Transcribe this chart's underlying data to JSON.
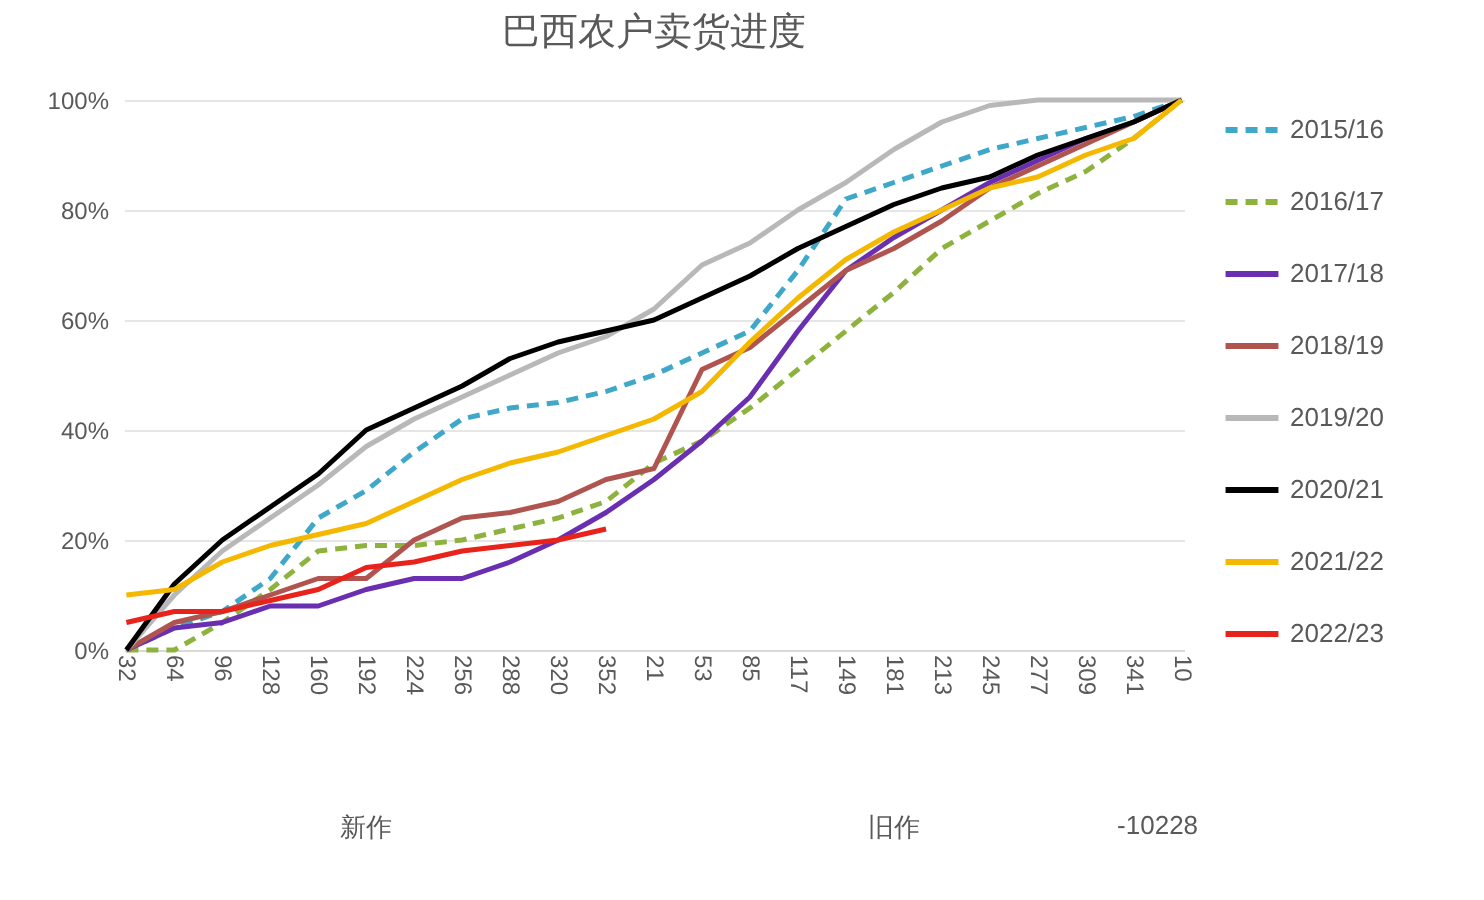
{
  "chart_data": {
    "type": "line",
    "title": "巴西农户卖货进度",
    "categories": [
      "32",
      "64",
      "96",
      "128",
      "160",
      "192",
      "224",
      "256",
      "288",
      "320",
      "352",
      "21",
      "53",
      "85",
      "117",
      "149",
      "181",
      "213",
      "245",
      "277",
      "309",
      "341",
      "10"
    ],
    "annotations": [
      "新作",
      "旧作",
      "-10228"
    ],
    "ylim": [
      0,
      100
    ],
    "yticks": [
      {
        "value": 0,
        "label": "0%"
      },
      {
        "value": 20,
        "label": "20%"
      },
      {
        "value": 40,
        "label": "40%"
      },
      {
        "value": 60,
        "label": "60%"
      },
      {
        "value": 80,
        "label": "80%"
      },
      {
        "value": 100,
        "label": "100%"
      }
    ],
    "grid": "y",
    "legend": "right",
    "series": [
      {
        "name": "2015/16",
        "color": "#3fa8c8",
        "line_style": "dashed",
        "values": [
          0,
          4,
          7,
          13,
          24,
          29,
          36,
          42,
          44,
          45,
          47,
          50,
          54,
          58,
          69,
          82,
          85,
          88,
          91,
          93,
          95,
          97,
          100
        ]
      },
      {
        "name": "2016/17",
        "color": "#8db33e",
        "line_style": "dashed",
        "values": [
          0,
          0,
          5,
          11,
          18,
          19,
          19,
          20,
          22,
          24,
          27,
          34,
          38,
          44,
          51,
          58,
          65,
          73,
          78,
          83,
          87,
          93,
          100
        ]
      },
      {
        "name": "2017/18",
        "color": "#6a2fb0",
        "line_style": "solid",
        "values": [
          0,
          4,
          5,
          8,
          8,
          11,
          13,
          13,
          16,
          20,
          25,
          31,
          38,
          46,
          58,
          69,
          75,
          80,
          85,
          89,
          93,
          96,
          100
        ]
      },
      {
        "name": "2018/19",
        "color": "#b0544f",
        "line_style": "solid",
        "values": [
          0,
          5,
          7,
          10,
          13,
          13,
          20,
          24,
          25,
          27,
          31,
          33,
          51,
          55,
          62,
          69,
          73,
          78,
          84,
          88,
          92,
          96,
          100
        ]
      },
      {
        "name": "2019/20",
        "color": "#b8b8b8",
        "line_style": "solid",
        "values": [
          0,
          10,
          18,
          24,
          30,
          37,
          42,
          46,
          50,
          54,
          57,
          62,
          70,
          74,
          80,
          85,
          91,
          96,
          99,
          100,
          100,
          100,
          100
        ]
      },
      {
        "name": "2020/21",
        "color": "#000000",
        "line_style": "solid",
        "values": [
          0,
          12,
          20,
          26,
          32,
          40,
          44,
          48,
          53,
          56,
          58,
          60,
          64,
          68,
          73,
          77,
          81,
          84,
          86,
          90,
          93,
          96,
          100
        ]
      },
      {
        "name": "2021/22",
        "color": "#f5b800",
        "line_style": "solid",
        "values": [
          10,
          11,
          16,
          19,
          21,
          23,
          27,
          31,
          34,
          36,
          39,
          42,
          47,
          56,
          64,
          71,
          76,
          80,
          84,
          86,
          90,
          93,
          100
        ]
      },
      {
        "name": "2022/23",
        "color": "#e8231c",
        "line_style": "solid",
        "values": [
          5,
          7,
          7,
          9,
          11,
          15,
          16,
          18,
          19,
          20,
          22,
          null,
          null,
          null,
          null,
          null,
          null,
          null,
          null,
          null,
          null,
          null,
          null
        ]
      }
    ]
  }
}
